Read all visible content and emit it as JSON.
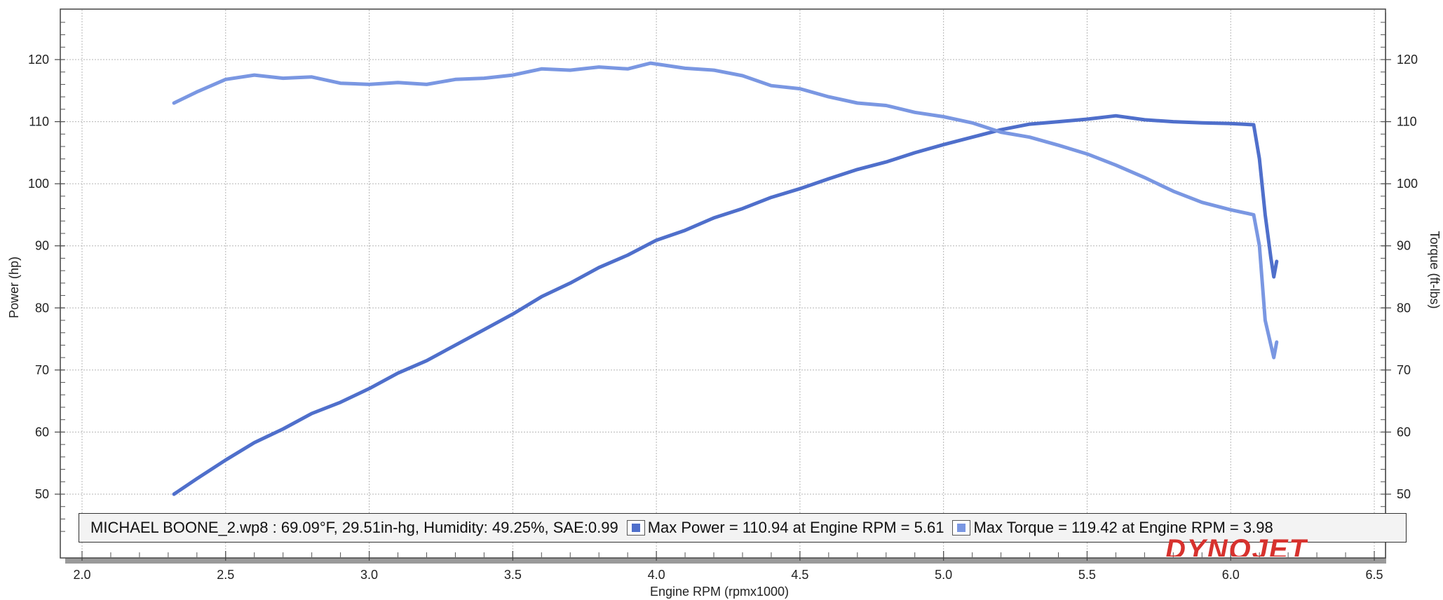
{
  "chart_data": {
    "type": "line",
    "xlabel": "Engine RPM (rpmx1000)",
    "ylabel_left": "Power (hp)",
    "ylabel_right": "Torque (ft-lbs)",
    "xlim": [
      2.0,
      6.5
    ],
    "ylim": [
      43,
      127
    ],
    "x_ticks": [
      "2.0",
      "2.5",
      "3.0",
      "3.5",
      "4.0",
      "4.5",
      "5.0",
      "5.5",
      "6.0",
      "6.5"
    ],
    "y_ticks_left": [
      "50",
      "60",
      "70",
      "80",
      "90",
      "100",
      "110",
      "120"
    ],
    "y_ticks_right": [
      "50",
      "60",
      "70",
      "80",
      "90",
      "100",
      "110",
      "120"
    ],
    "grid": true,
    "series": [
      {
        "name": "Power",
        "color": "#4f6fcb",
        "x": [
          2.32,
          2.4,
          2.5,
          2.6,
          2.7,
          2.8,
          2.9,
          3.0,
          3.1,
          3.2,
          3.3,
          3.4,
          3.5,
          3.6,
          3.7,
          3.8,
          3.9,
          4.0,
          4.1,
          4.2,
          4.3,
          4.4,
          4.5,
          4.6,
          4.7,
          4.8,
          4.9,
          5.0,
          5.1,
          5.2,
          5.3,
          5.4,
          5.5,
          5.6,
          5.7,
          5.8,
          5.9,
          6.0,
          6.08,
          6.1,
          6.12,
          6.14,
          6.15,
          6.16
        ],
        "values": [
          50.0,
          52.5,
          55.5,
          58.3,
          60.5,
          63.0,
          64.8,
          67.0,
          69.5,
          71.5,
          74.0,
          76.5,
          79.0,
          81.8,
          84.0,
          86.5,
          88.5,
          90.9,
          92.5,
          94.5,
          96.0,
          97.8,
          99.2,
          100.8,
          102.3,
          103.5,
          105.0,
          106.3,
          107.5,
          108.7,
          109.6,
          110.0,
          110.4,
          110.94,
          110.3,
          110.0,
          109.8,
          109.7,
          109.5,
          104.0,
          95.0,
          88.0,
          85.0,
          87.5
        ]
      },
      {
        "name": "Torque",
        "color": "#7a97e2",
        "x": [
          2.32,
          2.4,
          2.5,
          2.6,
          2.7,
          2.8,
          2.9,
          3.0,
          3.1,
          3.2,
          3.3,
          3.4,
          3.5,
          3.6,
          3.7,
          3.8,
          3.9,
          3.98,
          4.1,
          4.2,
          4.3,
          4.4,
          4.5,
          4.6,
          4.7,
          4.8,
          4.9,
          5.0,
          5.1,
          5.2,
          5.3,
          5.4,
          5.5,
          5.6,
          5.7,
          5.8,
          5.9,
          6.0,
          6.08,
          6.1,
          6.12,
          6.14,
          6.15,
          6.16
        ],
        "values": [
          113.0,
          114.8,
          116.8,
          117.5,
          117.0,
          117.2,
          116.2,
          116.0,
          116.3,
          116.0,
          116.8,
          117.0,
          117.5,
          118.5,
          118.3,
          118.8,
          118.5,
          119.42,
          118.6,
          118.3,
          117.4,
          115.8,
          115.3,
          114.0,
          113.0,
          112.6,
          111.5,
          110.8,
          109.8,
          108.3,
          107.5,
          106.2,
          104.8,
          103.0,
          101.0,
          98.8,
          97.0,
          95.8,
          95.0,
          90.0,
          78.0,
          74.0,
          72.0,
          74.5
        ]
      }
    ]
  },
  "legend": {
    "run_info": "MICHAEL BOONE_2.wp8 : 69.09°F, 29.51in-hg, Humidity: 49.25%, SAE:0.99",
    "power_label": "Max Power = 110.94 at Engine RPM = 5.61",
    "torque_label": "Max Torque = 119.42 at Engine RPM = 3.98"
  },
  "brand": "DYNOJET"
}
